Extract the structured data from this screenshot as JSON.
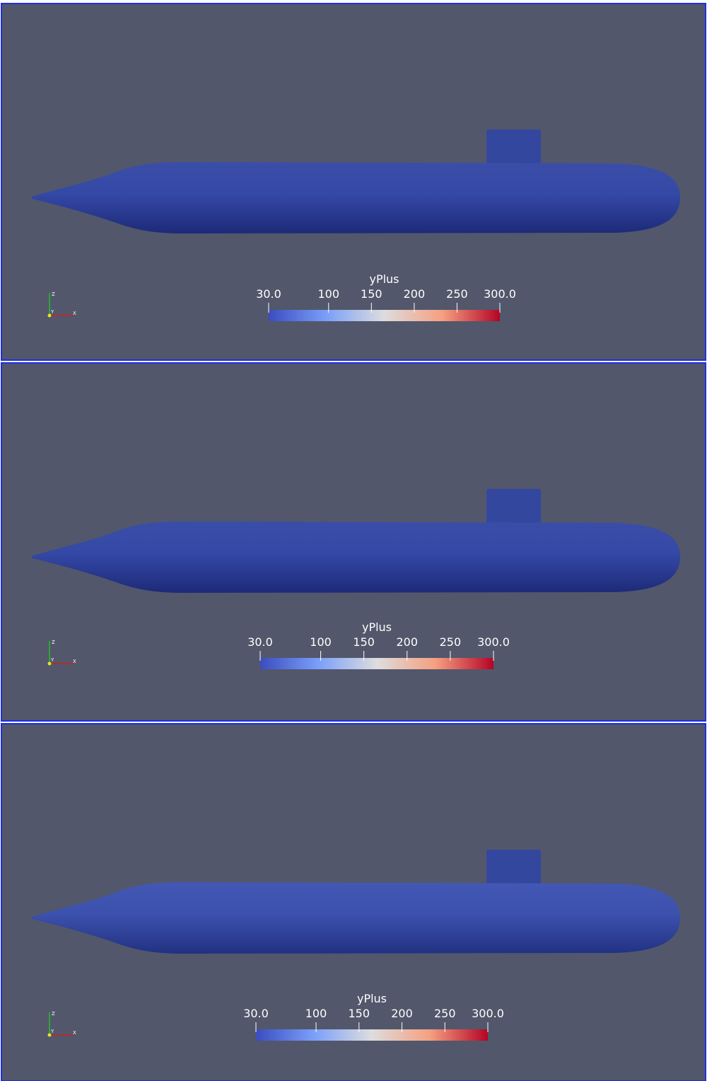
{
  "panels": [
    {
      "colorbar": {
        "title": "yPlus",
        "range": [
          30,
          300
        ],
        "ticks": [
          {
            "value": 30,
            "label": "30.0"
          },
          100,
          150,
          200,
          250,
          {
            "value": 300,
            "label": "300.0"
          }
        ]
      },
      "axes": {
        "x": "X",
        "y": "Y",
        "z": "Z"
      }
    },
    {
      "colorbar": {
        "title": "yPlus",
        "range": [
          30,
          300
        ],
        "ticks": [
          {
            "value": 30,
            "label": "30.0"
          },
          100,
          150,
          200,
          250,
          {
            "value": 300,
            "label": "300.0"
          }
        ]
      },
      "axes": {
        "x": "X",
        "y": "Y",
        "z": "Z"
      }
    },
    {
      "colorbar": {
        "title": "yPlus",
        "range": [
          30,
          300
        ],
        "ticks": [
          {
            "value": 30,
            "label": "30.0"
          },
          100,
          150,
          200,
          250,
          {
            "value": 300,
            "label": "300.0"
          }
        ]
      },
      "axes": {
        "x": "X",
        "y": "Y",
        "z": "Z"
      }
    }
  ]
}
